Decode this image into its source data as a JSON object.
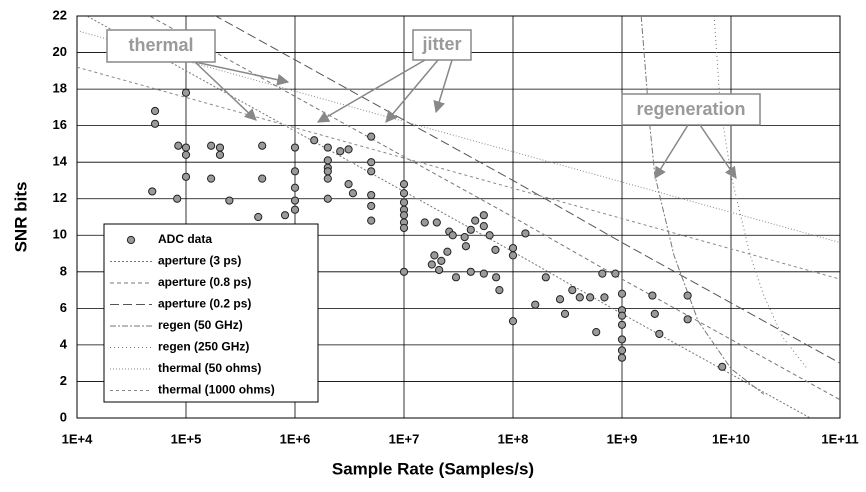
{
  "chart_data": {
    "type": "scatter",
    "x_label": "Sample Rate (Samples/s)",
    "y_label": "SNR bits",
    "xscale": "log",
    "xlim": [
      10000,
      100000000000
    ],
    "xticks": [
      {
        "value": 10000,
        "label": "1E+4"
      },
      {
        "value": 100000,
        "label": "1E+5"
      },
      {
        "value": 1000000,
        "label": "1E+6"
      },
      {
        "value": 10000000,
        "label": "1E+7"
      },
      {
        "value": 100000000,
        "label": "1E+8"
      },
      {
        "value": 1000000000,
        "label": "1E+9"
      },
      {
        "value": 10000000000,
        "label": "1E+10"
      },
      {
        "value": 100000000000,
        "label": "1E+11"
      }
    ],
    "ylim": [
      0,
      22
    ],
    "yticks": [
      0,
      2,
      4,
      6,
      8,
      10,
      12,
      14,
      16,
      18,
      20,
      22
    ],
    "grid": true,
    "annotations": [
      "thermal",
      "jitter",
      "regeneration"
    ],
    "series": [
      {
        "name": "ADC data",
        "type": "scatter",
        "color": "#9a9a9a",
        "x": [
          52000,
          52000,
          49000,
          100000,
          85000,
          100000,
          100000,
          100000,
          83000,
          170000,
          205000,
          205000,
          170000,
          250000,
          500000,
          500000,
          460000,
          810000,
          1000000,
          1000000,
          1000000,
          1000000,
          1000000,
          1500000,
          2000000,
          2000000,
          2600000,
          3100000,
          2000000,
          2000000,
          2000000,
          2000000,
          3100000,
          5000000,
          5000000,
          5000000,
          5000000,
          5000000,
          5000000,
          3400000,
          10000000,
          10000000,
          10000000,
          10000000,
          10000000,
          10000000,
          10000000,
          10000000,
          15500000,
          20000000,
          19000000,
          18000000,
          22000000,
          21000000,
          25000000,
          26000000,
          28000000,
          30000000,
          36000000,
          37000000,
          41000000,
          41000000,
          45000000,
          54000000,
          54000000,
          61000000,
          54000000,
          70000000,
          75000000,
          69000000,
          100000000,
          100000000,
          100000000,
          130000000,
          160000000,
          200000000,
          270000000,
          300000000,
          350000000,
          410000000,
          510000000,
          580000000,
          690000000,
          660000000,
          870000000,
          1000000000,
          1000000000,
          1000000000,
          1000000000,
          1000000000,
          1000000000,
          1000000000,
          1900000000,
          2000000000,
          2200000000,
          4000000000,
          4000000000,
          8300000000
        ],
        "values": [
          16.8,
          16.1,
          12.4,
          17.8,
          14.9,
          14.8,
          14.4,
          13.2,
          12.0,
          14.9,
          14.8,
          14.4,
          13.1,
          11.9,
          14.9,
          13.1,
          11.0,
          11.1,
          14.8,
          13.5,
          12.6,
          11.9,
          11.4,
          15.2,
          14.8,
          14.1,
          14.6,
          14.7,
          13.7,
          13.5,
          13.1,
          12.0,
          12.8,
          13.5,
          14.0,
          15.4,
          12.2,
          11.6,
          10.8,
          12.3,
          12.8,
          12.3,
          11.8,
          11.4,
          11.1,
          10.7,
          10.4,
          8.0,
          10.7,
          10.7,
          8.9,
          8.4,
          8.6,
          8.1,
          9.1,
          10.2,
          10.0,
          7.7,
          9.9,
          9.4,
          8.0,
          10.3,
          10.8,
          11.1,
          10.5,
          10.0,
          7.9,
          7.7,
          7.0,
          9.2,
          9.3,
          8.9,
          5.3,
          10.1,
          6.2,
          7.7,
          6.5,
          5.7,
          7.0,
          6.6,
          6.6,
          4.7,
          6.6,
          7.9,
          7.9,
          6.8,
          5.9,
          5.6,
          5.1,
          4.3,
          3.7,
          3.3,
          6.7,
          5.7,
          4.6,
          6.7,
          5.4,
          2.8
        ]
      },
      {
        "name": "aperture (3 ps)",
        "type": "line",
        "color": "#777777",
        "x": [
          10000,
          100000,
          1000000,
          10000000,
          100000000,
          1000000000,
          10000000000,
          100000000000
        ],
        "values": [
          22.3,
          19.0,
          15.7,
          12.4,
          9.1,
          5.7,
          2.4,
          -0.9
        ]
      },
      {
        "name": "aperture (0.8 ps)",
        "type": "line",
        "color": "#777777",
        "x": [
          10000,
          100000,
          1000000,
          10000000,
          100000000,
          1000000000,
          10000000000,
          100000000000
        ],
        "values": [
          24.2,
          20.9,
          17.6,
          14.3,
          11.0,
          7.6,
          4.3,
          1.0
        ]
      },
      {
        "name": "aperture (0.2 ps)",
        "type": "line",
        "color": "#555555",
        "x": [
          10000,
          100000,
          1000000,
          10000000,
          100000000,
          1000000000,
          10000000000,
          100000000000
        ],
        "values": [
          26.2,
          22.9,
          19.6,
          16.3,
          13.0,
          9.6,
          6.3,
          3.0
        ]
      },
      {
        "name": "regen (50 GHz)",
        "type": "line",
        "color": "#777777",
        "x": [
          1500000000,
          1800000000,
          2000000000,
          3000000000,
          5000000000,
          10000000000,
          20000000000
        ],
        "values": [
          22,
          16,
          13.3,
          8.9,
          5.3,
          2.7,
          1.3
        ]
      },
      {
        "name": "regen (250 GHz)",
        "type": "line",
        "color": "#777777",
        "x": [
          7000000000,
          8000000000,
          10000000000,
          15000000000,
          20000000000,
          30000000000,
          50000000000
        ],
        "values": [
          22,
          17,
          13.3,
          8.9,
          6.7,
          4.4,
          2.7
        ]
      },
      {
        "name": "thermal (50 ohms)",
        "type": "line",
        "color": "#888888",
        "x": [
          10000,
          100000000000
        ],
        "values": [
          21.2,
          9.6
        ]
      },
      {
        "name": "thermal (1000 ohms)",
        "type": "line",
        "color": "#888888",
        "x": [
          10000,
          100000000000
        ],
        "values": [
          19.2,
          7.6
        ]
      }
    ]
  }
}
